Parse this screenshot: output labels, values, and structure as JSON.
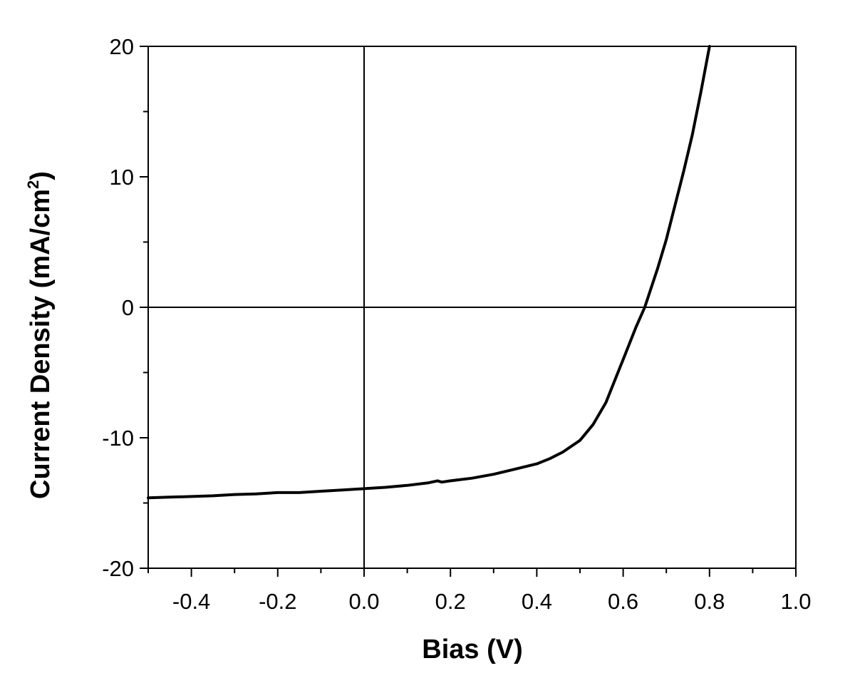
{
  "chart_data": {
    "type": "line",
    "title": "",
    "xlabel": "Bias (V)",
    "ylabel": {
      "main": "Current Density (mA/cm",
      "superscript": "2",
      "close": ")"
    },
    "xlim": [
      -0.5,
      1.0
    ],
    "ylim": [
      -20,
      20
    ],
    "xticks": [
      -0.4,
      -0.2,
      0.0,
      0.2,
      0.4,
      0.6,
      0.8,
      1.0
    ],
    "xtick_labels": [
      "-0.4",
      "-0.2",
      "0.0",
      "0.2",
      "0.4",
      "0.6",
      "0.8",
      "1.0"
    ],
    "yticks": [
      -20,
      -10,
      0,
      10,
      20
    ],
    "ytick_labels": [
      "-20",
      "-10",
      "0",
      "10",
      "20"
    ],
    "zero_lines": true,
    "grid": false,
    "legend": "none",
    "series": [
      {
        "color": "#000000",
        "x": [
          -0.5,
          -0.45,
          -0.4,
          -0.35,
          -0.3,
          -0.25,
          -0.2,
          -0.15,
          -0.1,
          -0.05,
          0.0,
          0.05,
          0.1,
          0.15,
          0.17,
          0.18,
          0.2,
          0.25,
          0.3,
          0.35,
          0.4,
          0.43,
          0.46,
          0.5,
          0.53,
          0.56,
          0.6,
          0.63,
          0.65,
          0.68,
          0.7,
          0.72,
          0.74,
          0.76,
          0.78,
          0.8
        ],
        "y": [
          -14.6,
          -14.55,
          -14.5,
          -14.45,
          -14.35,
          -14.3,
          -14.2,
          -14.2,
          -14.1,
          -14.0,
          -13.9,
          -13.8,
          -13.65,
          -13.45,
          -13.3,
          -13.4,
          -13.3,
          -13.1,
          -12.8,
          -12.4,
          -12.0,
          -11.6,
          -11.1,
          -10.2,
          -9.0,
          -7.3,
          -4.0,
          -1.5,
          0.0,
          3.0,
          5.2,
          7.8,
          10.4,
          13.2,
          16.5,
          20.0
        ]
      }
    ]
  }
}
